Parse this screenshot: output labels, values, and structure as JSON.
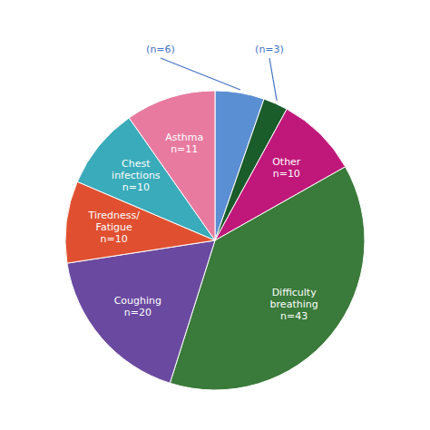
{
  "chart_data": {
    "type": "pie",
    "categories": [
      "(n=6)",
      "(n=3)",
      "Other\nn=10",
      "Difficulty\nbreathing\nn=43",
      "Coughing\nn=20",
      "Tiredness/\nFatigue\nn=10",
      "Chest\ninfections\nn=10",
      "Asthma\nn=11"
    ],
    "values": [
      6,
      3,
      10,
      43,
      20,
      10,
      10,
      11
    ],
    "colors": [
      "#5b8fd4",
      "#1a5c2a",
      "#c0187a",
      "#3a7a3a",
      "#6a4aa0",
      "#e05030",
      "#3aabba",
      "#e87aa0"
    ]
  }
}
